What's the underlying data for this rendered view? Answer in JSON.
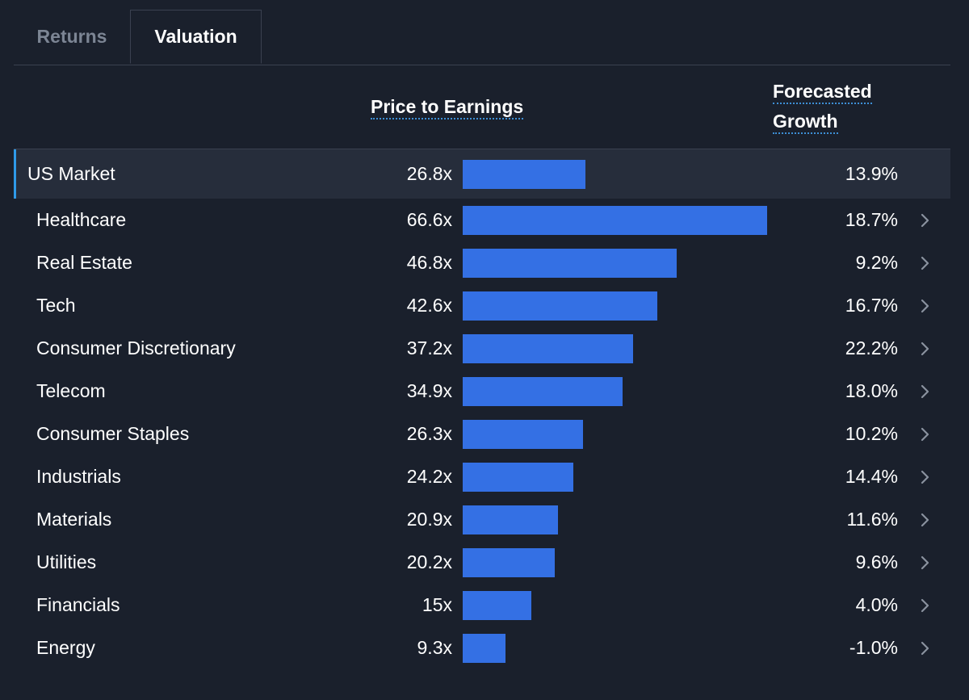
{
  "tabs": [
    {
      "label": "Returns",
      "active": false
    },
    {
      "label": "Valuation",
      "active": true
    }
  ],
  "headers": {
    "pe": "Price to Earnings",
    "growth_line1": "Forecasted",
    "growth_line2": "Growth"
  },
  "colors": {
    "background": "#1a202c",
    "bar": "#3470e4",
    "highlight_row": "#262d3b",
    "accent": "#2f9ae8"
  },
  "rows": [
    {
      "name": "US Market",
      "pe": "26.8x",
      "pe_value": 26.8,
      "growth": "13.9%",
      "highlight": true
    },
    {
      "name": "Healthcare",
      "pe": "66.6x",
      "pe_value": 66.6,
      "growth": "18.7%"
    },
    {
      "name": "Real Estate",
      "pe": "46.8x",
      "pe_value": 46.8,
      "growth": "9.2%"
    },
    {
      "name": "Tech",
      "pe": "42.6x",
      "pe_value": 42.6,
      "growth": "16.7%"
    },
    {
      "name": "Consumer Discretionary",
      "pe": "37.2x",
      "pe_value": 37.2,
      "growth": "22.2%"
    },
    {
      "name": "Telecom",
      "pe": "34.9x",
      "pe_value": 34.9,
      "growth": "18.0%"
    },
    {
      "name": "Consumer Staples",
      "pe": "26.3x",
      "pe_value": 26.3,
      "growth": "10.2%"
    },
    {
      "name": "Industrials",
      "pe": "24.2x",
      "pe_value": 24.2,
      "growth": "14.4%"
    },
    {
      "name": "Materials",
      "pe": "20.9x",
      "pe_value": 20.9,
      "growth": "11.6%"
    },
    {
      "name": "Utilities",
      "pe": "20.2x",
      "pe_value": 20.2,
      "growth": "9.6%"
    },
    {
      "name": "Financials",
      "pe": "15x",
      "pe_value": 15,
      "growth": "4.0%"
    },
    {
      "name": "Energy",
      "pe": "9.3x",
      "pe_value": 9.3,
      "growth": "-1.0%"
    }
  ]
}
